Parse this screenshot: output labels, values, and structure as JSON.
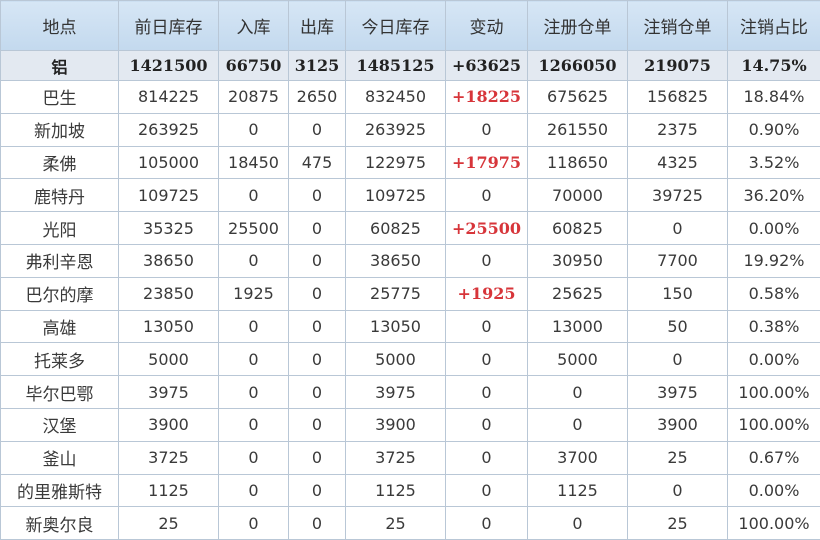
{
  "colors": {
    "header_bg": "#c9ddf0",
    "total_bg": "#e3e9f1",
    "positive_change": "#d7353a",
    "border": "#b9c7d6"
  },
  "headers": [
    "地点",
    "前日库存",
    "入库",
    "出库",
    "今日库存",
    "变动",
    "注册仓单",
    "注销仓单",
    "注销占比"
  ],
  "total": [
    "铝",
    "1421500",
    "66750",
    "3125",
    "1485125",
    "+63625",
    "1266050",
    "219075",
    "14.75%"
  ],
  "rows": [
    [
      "巴生",
      "814225",
      "20875",
      "2650",
      "832450",
      "+18225",
      "675625",
      "156825",
      "18.84%"
    ],
    [
      "新加坡",
      "263925",
      "0",
      "0",
      "263925",
      "0",
      "261550",
      "2375",
      "0.90%"
    ],
    [
      "柔佛",
      "105000",
      "18450",
      "475",
      "122975",
      "+17975",
      "118650",
      "4325",
      "3.52%"
    ],
    [
      "鹿特丹",
      "109725",
      "0",
      "0",
      "109725",
      "0",
      "70000",
      "39725",
      "36.20%"
    ],
    [
      "光阳",
      "35325",
      "25500",
      "0",
      "60825",
      "+25500",
      "60825",
      "0",
      "0.00%"
    ],
    [
      "弗利辛恩",
      "38650",
      "0",
      "0",
      "38650",
      "0",
      "30950",
      "7700",
      "19.92%"
    ],
    [
      "巴尔的摩",
      "23850",
      "1925",
      "0",
      "25775",
      "+1925",
      "25625",
      "150",
      "0.58%"
    ],
    [
      "高雄",
      "13050",
      "0",
      "0",
      "13050",
      "0",
      "13000",
      "50",
      "0.38%"
    ],
    [
      "托莱多",
      "5000",
      "0",
      "0",
      "5000",
      "0",
      "5000",
      "0",
      "0.00%"
    ],
    [
      "毕尔巴鄂",
      "3975",
      "0",
      "0",
      "3975",
      "0",
      "0",
      "3975",
      "100.00%"
    ],
    [
      "汉堡",
      "3900",
      "0",
      "0",
      "3900",
      "0",
      "0",
      "3900",
      "100.00%"
    ],
    [
      "釜山",
      "3725",
      "0",
      "0",
      "3725",
      "0",
      "3700",
      "25",
      "0.67%"
    ],
    [
      "的里雅斯特",
      "1125",
      "0",
      "0",
      "1125",
      "0",
      "1125",
      "0",
      "0.00%"
    ],
    [
      "新奥尔良",
      "25",
      "0",
      "0",
      "25",
      "0",
      "0",
      "25",
      "100.00%"
    ]
  ]
}
